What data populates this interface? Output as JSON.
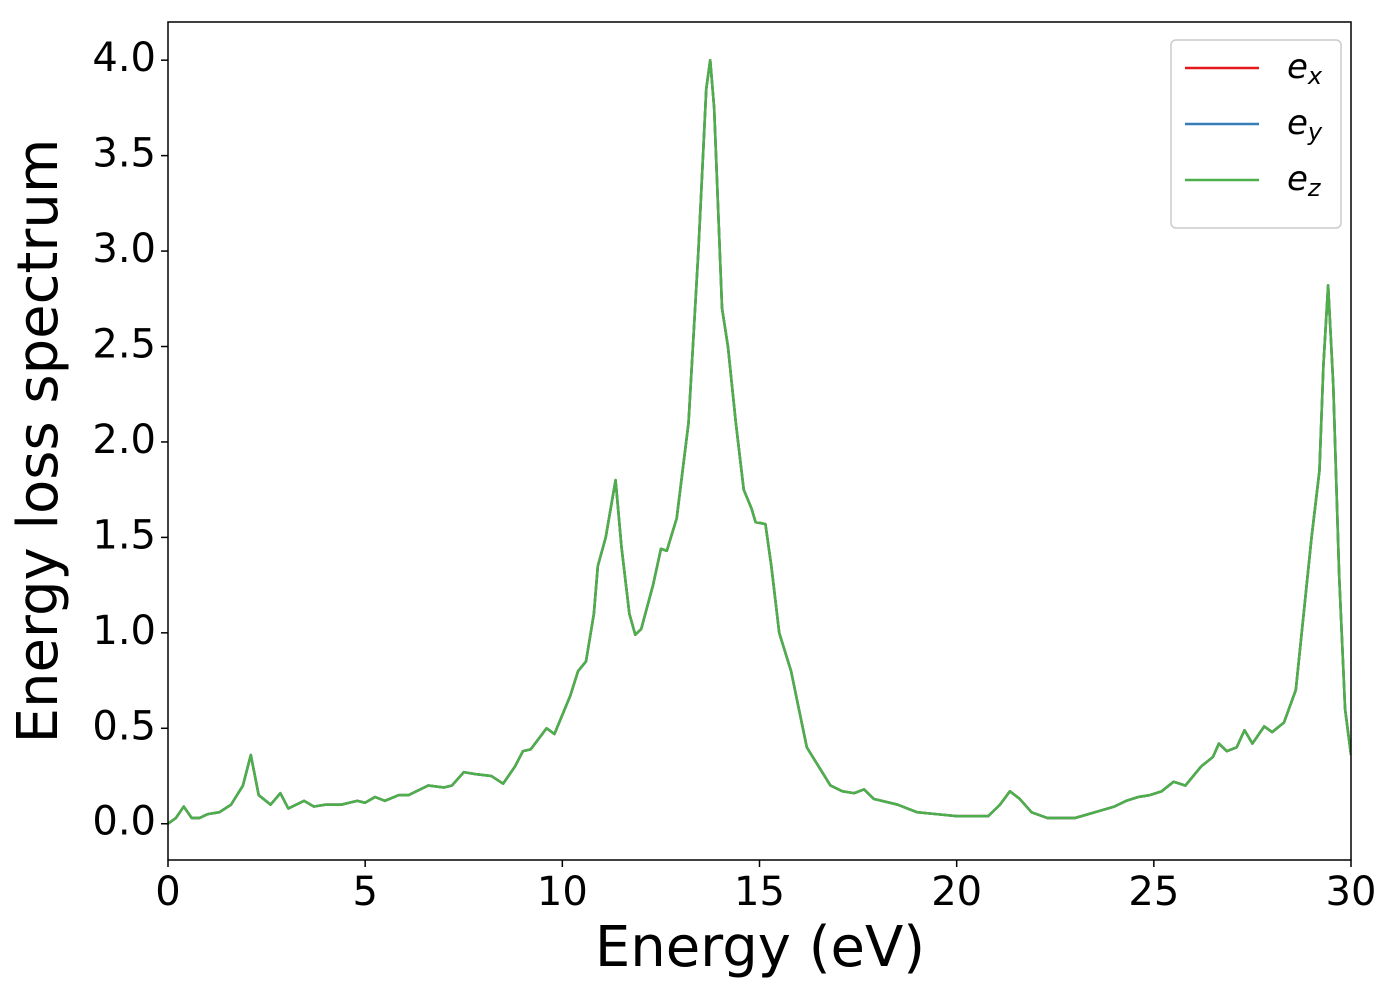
{
  "chart_data": {
    "type": "line",
    "xlabel": "Energy (eV)",
    "ylabel": "Energy loss spectrum",
    "x": [
      0,
      0.2,
      0.4,
      0.6,
      0.8,
      1.0,
      1.3,
      1.6,
      1.9,
      2.1,
      2.3,
      2.6,
      2.85,
      3.05,
      3.45,
      3.7,
      4.0,
      4.4,
      4.8,
      5.0,
      5.25,
      5.5,
      5.85,
      6.1,
      6.6,
      7.0,
      7.2,
      7.5,
      7.8,
      8.2,
      8.5,
      8.8,
      9.0,
      9.2,
      9.6,
      9.8,
      10.2,
      10.4,
      10.6,
      10.8,
      10.9,
      11.1,
      11.35,
      11.5,
      11.7,
      11.85,
      12.0,
      12.3,
      12.5,
      12.65,
      12.9,
      13.2,
      13.45,
      13.65,
      13.75,
      13.85,
      14.05,
      14.2,
      14.4,
      14.6,
      14.8,
      14.9,
      15.15,
      15.3,
      15.5,
      15.8,
      16.0,
      16.2,
      16.5,
      16.8,
      17.1,
      17.4,
      17.65,
      17.9,
      18.5,
      19.0,
      19.5,
      20.0,
      20.8,
      21.1,
      21.35,
      21.6,
      21.9,
      22.3,
      23.0,
      23.5,
      24.0,
      24.3,
      24.6,
      24.9,
      25.2,
      25.5,
      25.8,
      26.2,
      26.5,
      26.65,
      26.85,
      27.1,
      27.3,
      27.5,
      27.8,
      28.0,
      28.3,
      28.6,
      28.8,
      29.0,
      29.2,
      29.3,
      29.42,
      29.55,
      29.7,
      29.85,
      30.0
    ],
    "series": [
      {
        "name": "ex",
        "color": "#e41a1c",
        "values": [
          0.0,
          0.03,
          0.09,
          0.03,
          0.03,
          0.05,
          0.06,
          0.1,
          0.2,
          0.36,
          0.15,
          0.1,
          0.16,
          0.08,
          0.12,
          0.09,
          0.1,
          0.1,
          0.12,
          0.11,
          0.14,
          0.12,
          0.15,
          0.15,
          0.2,
          0.19,
          0.2,
          0.27,
          0.26,
          0.25,
          0.21,
          0.3,
          0.38,
          0.39,
          0.5,
          0.47,
          0.67,
          0.8,
          0.85,
          1.1,
          1.35,
          1.5,
          1.8,
          1.45,
          1.1,
          0.99,
          1.02,
          1.25,
          1.44,
          1.43,
          1.6,
          2.1,
          3.0,
          3.85,
          4.0,
          3.75,
          2.7,
          2.5,
          2.1,
          1.75,
          1.65,
          1.58,
          1.57,
          1.35,
          1.0,
          0.8,
          0.6,
          0.4,
          0.3,
          0.2,
          0.17,
          0.16,
          0.18,
          0.13,
          0.1,
          0.06,
          0.05,
          0.04,
          0.04,
          0.1,
          0.17,
          0.13,
          0.06,
          0.03,
          0.03,
          0.06,
          0.09,
          0.12,
          0.14,
          0.15,
          0.17,
          0.22,
          0.2,
          0.3,
          0.35,
          0.42,
          0.38,
          0.4,
          0.49,
          0.42,
          0.51,
          0.48,
          0.53,
          0.7,
          1.1,
          1.5,
          1.85,
          2.4,
          2.82,
          2.3,
          1.3,
          0.6,
          0.36
        ]
      },
      {
        "name": "ey",
        "color": "#377eb8",
        "values": [
          0.0,
          0.03,
          0.09,
          0.03,
          0.03,
          0.05,
          0.06,
          0.1,
          0.2,
          0.36,
          0.15,
          0.1,
          0.16,
          0.08,
          0.12,
          0.09,
          0.1,
          0.1,
          0.12,
          0.11,
          0.14,
          0.12,
          0.15,
          0.15,
          0.2,
          0.19,
          0.2,
          0.27,
          0.26,
          0.25,
          0.21,
          0.3,
          0.38,
          0.39,
          0.5,
          0.47,
          0.67,
          0.8,
          0.85,
          1.1,
          1.35,
          1.5,
          1.8,
          1.45,
          1.1,
          0.99,
          1.02,
          1.25,
          1.44,
          1.43,
          1.6,
          2.1,
          3.0,
          3.85,
          4.0,
          3.75,
          2.7,
          2.5,
          2.1,
          1.75,
          1.65,
          1.58,
          1.57,
          1.35,
          1.0,
          0.8,
          0.6,
          0.4,
          0.3,
          0.2,
          0.17,
          0.16,
          0.18,
          0.13,
          0.1,
          0.06,
          0.05,
          0.04,
          0.04,
          0.1,
          0.17,
          0.13,
          0.06,
          0.03,
          0.03,
          0.06,
          0.09,
          0.12,
          0.14,
          0.15,
          0.17,
          0.22,
          0.2,
          0.3,
          0.35,
          0.42,
          0.38,
          0.4,
          0.49,
          0.42,
          0.51,
          0.48,
          0.53,
          0.7,
          1.1,
          1.5,
          1.85,
          2.4,
          2.82,
          2.3,
          1.3,
          0.6,
          0.36
        ]
      },
      {
        "name": "ez",
        "color": "#4daf4a",
        "values": [
          0.0,
          0.03,
          0.09,
          0.03,
          0.03,
          0.05,
          0.06,
          0.1,
          0.2,
          0.36,
          0.15,
          0.1,
          0.16,
          0.08,
          0.12,
          0.09,
          0.1,
          0.1,
          0.12,
          0.11,
          0.14,
          0.12,
          0.15,
          0.15,
          0.2,
          0.19,
          0.2,
          0.27,
          0.26,
          0.25,
          0.21,
          0.3,
          0.38,
          0.39,
          0.5,
          0.47,
          0.67,
          0.8,
          0.85,
          1.1,
          1.35,
          1.5,
          1.8,
          1.45,
          1.1,
          0.99,
          1.02,
          1.25,
          1.44,
          1.43,
          1.6,
          2.1,
          3.0,
          3.85,
          4.0,
          3.75,
          2.7,
          2.5,
          2.1,
          1.75,
          1.65,
          1.58,
          1.57,
          1.35,
          1.0,
          0.8,
          0.6,
          0.4,
          0.3,
          0.2,
          0.17,
          0.16,
          0.18,
          0.13,
          0.1,
          0.06,
          0.05,
          0.04,
          0.04,
          0.1,
          0.17,
          0.13,
          0.06,
          0.03,
          0.03,
          0.06,
          0.09,
          0.12,
          0.14,
          0.15,
          0.17,
          0.22,
          0.2,
          0.3,
          0.35,
          0.42,
          0.38,
          0.4,
          0.49,
          0.42,
          0.51,
          0.48,
          0.53,
          0.7,
          1.1,
          1.5,
          1.85,
          2.4,
          2.82,
          2.3,
          1.3,
          0.6,
          0.36
        ]
      }
    ],
    "xlim": [
      0,
      30
    ],
    "xticks": [
      0,
      5,
      10,
      15,
      20,
      25,
      30
    ],
    "ylim": [
      -0.19,
      4.2
    ],
    "yticks": [
      {
        "value": 0,
        "label": "0.0"
      },
      0.5,
      {
        "value": 1,
        "label": "1.0"
      },
      1.5,
      {
        "value": 2,
        "label": "2.0"
      },
      2.5,
      {
        "value": 3,
        "label": "3.0"
      },
      3.5,
      {
        "value": 4,
        "label": "4.0"
      }
    ],
    "legend": "upper right"
  }
}
